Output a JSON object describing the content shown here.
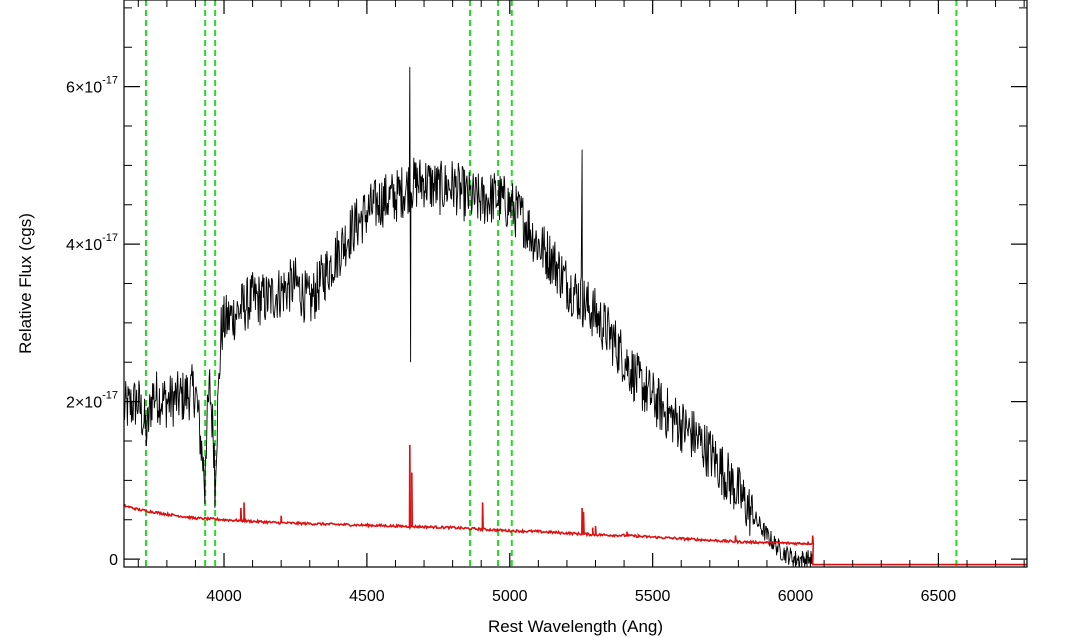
{
  "chart_data": {
    "type": "line",
    "title": "",
    "xlabel": "Rest Wavelength (Ang)",
    "ylabel": "Relative Flux (cgs)",
    "xlim": [
      3650,
      6810
    ],
    "ylim": [
      -1e-18,
      7.1e-17
    ],
    "x_ticks": [
      {
        "value": 4000,
        "label": "4000"
      },
      {
        "value": 4500,
        "label": "4500"
      },
      {
        "value": 5000,
        "label": "5000"
      },
      {
        "value": 5500,
        "label": "5500"
      },
      {
        "value": 6000,
        "label": "6000"
      },
      {
        "value": 6500,
        "label": "6500"
      }
    ],
    "y_ticks": [
      {
        "value": 0,
        "mantissa": "0",
        "exponent": ""
      },
      {
        "value": 2e-17,
        "mantissa": "2×10",
        "exponent": "-17"
      },
      {
        "value": 4e-17,
        "mantissa": "4×10",
        "exponent": "-17"
      },
      {
        "value": 6e-17,
        "mantissa": "6×10",
        "exponent": "-17"
      }
    ],
    "grid": false,
    "series": [
      {
        "color": "#000000",
        "x": [
          3650,
          3700,
          3730,
          3750,
          3800,
          3850,
          3900,
          3930,
          3950,
          3970,
          3990,
          4000,
          4050,
          4100,
          4150,
          4200,
          4250,
          4300,
          4350,
          4400,
          4450,
          4500,
          4550,
          4600,
          4650,
          4700,
          4750,
          4800,
          4850,
          4900,
          4950,
          5000,
          5050,
          5100,
          5150,
          5200,
          5250,
          5300,
          5350,
          5400,
          5450,
          5500,
          5550,
          5600,
          5650,
          5700,
          5750,
          5800,
          5850,
          5900,
          5950,
          6000,
          6050,
          6060
        ],
        "y": [
          1.9e-17,
          2e-17,
          1.6e-17,
          2.1e-17,
          2e-17,
          2.05e-17,
          2.15e-17,
          1.1e-17,
          2.2e-17,
          1.2e-17,
          2.9e-17,
          3e-17,
          3.15e-17,
          3.3e-17,
          3.3e-17,
          3.4e-17,
          3.5e-17,
          3.25e-17,
          3.6e-17,
          3.9e-17,
          4.2e-17,
          4.4e-17,
          4.55e-17,
          4.6e-17,
          4.75e-17,
          4.8e-17,
          4.7e-17,
          4.75e-17,
          4.6e-17,
          4.55e-17,
          4.6e-17,
          4.5e-17,
          4.3e-17,
          4e-17,
          3.8e-17,
          3.5e-17,
          3.3e-17,
          3.1e-17,
          2.85e-17,
          2.55e-17,
          2.25e-17,
          2.05e-17,
          1.85e-17,
          1.7e-17,
          1.55e-17,
          1.35e-17,
          1.1e-17,
          8.5e-18,
          5.5e-18,
          3e-18,
          1e-18,
          0.0,
          0.0,
          0.0
        ],
        "noise": 3.5e-18,
        "features": [
          {
            "x": 4650,
            "y": 6.25e-17
          },
          {
            "x": 4653,
            "y": 2.5e-17
          },
          {
            "x": 5253,
            "y": 5.2e-17
          },
          {
            "x": 3933,
            "y": 7e-18
          },
          {
            "x": 3968,
            "y": 6.5e-18
          }
        ]
      },
      {
        "color": "#dd1111",
        "x": [
          3650,
          3700,
          3800,
          3900,
          4000,
          4100,
          4200,
          4300,
          4400,
          4500,
          4600,
          4700,
          4800,
          4900,
          5000,
          5100,
          5200,
          5300,
          5400,
          5500,
          5600,
          5700,
          5800,
          5900,
          6000,
          6060
        ],
        "y": [
          6.8e-18,
          6.3e-18,
          5.7e-18,
          5.2e-18,
          5e-18,
          4.8e-18,
          4.6e-18,
          4.5e-18,
          4.4e-18,
          4.3e-18,
          4.2e-18,
          4.1e-18,
          4e-18,
          3.8e-18,
          3.6e-18,
          3.5e-18,
          3.3e-18,
          3.1e-18,
          3e-18,
          2.8e-18,
          2.6e-18,
          2.4e-18,
          2.2e-18,
          2.1e-18,
          2e-18,
          2e-18
        ],
        "tail": {
          "x_start": 6060,
          "x_end": 6810,
          "y": -7e-19
        },
        "lines": [
          {
            "x": 4059,
            "y": 6.5e-18
          },
          {
            "x": 4070,
            "y": 7.2e-18
          },
          {
            "x": 4200,
            "y": 5.5e-18
          },
          {
            "x": 4650,
            "y": 1.45e-17
          },
          {
            "x": 4657,
            "y": 1.1e-17
          },
          {
            "x": 4905,
            "y": 7.2e-18
          },
          {
            "x": 5253,
            "y": 6.5e-18
          },
          {
            "x": 5258,
            "y": 6e-18
          },
          {
            "x": 5290,
            "y": 4e-18
          },
          {
            "x": 5300,
            "y": 4.2e-18
          },
          {
            "x": 5410,
            "y": 3.5e-18
          },
          {
            "x": 5450,
            "y": 3e-18
          },
          {
            "x": 5790,
            "y": 3e-18
          },
          {
            "x": 6060,
            "y": 3e-18
          }
        ]
      }
    ],
    "vertical_lines": {
      "color": "#22dd22",
      "style": "dashed",
      "x": [
        3727,
        3934,
        3969,
        4861,
        4959,
        5007,
        6563
      ]
    }
  }
}
